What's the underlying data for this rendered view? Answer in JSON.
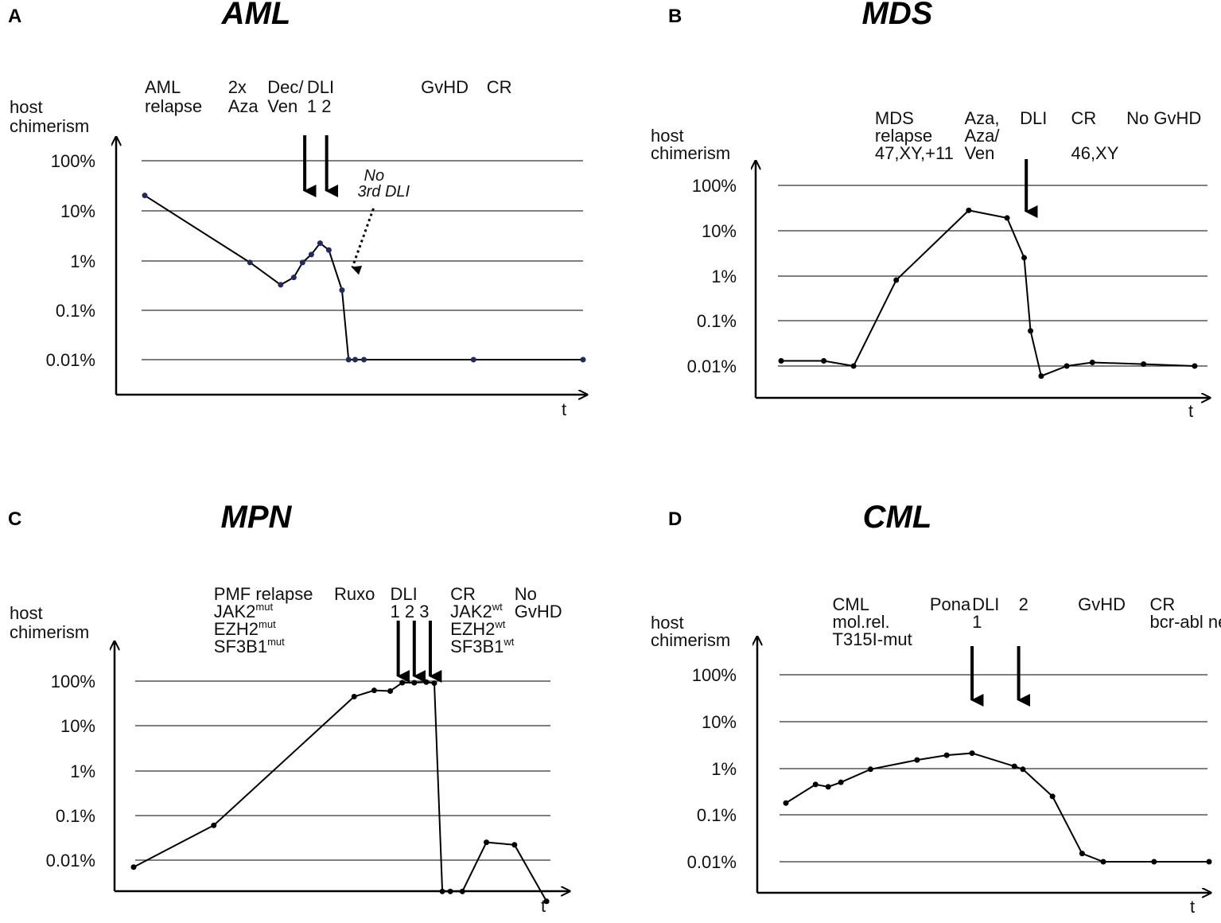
{
  "chart_data": [
    {
      "panel": "A",
      "title": "AML",
      "type": "line",
      "ylabel": [
        "host",
        "chimerism"
      ],
      "xlabel": "t",
      "yticks": [
        "100%",
        "10%",
        "1%",
        "0.1%",
        "0.01%"
      ],
      "yscale": "log",
      "ylim_exp": [
        -2,
        2
      ],
      "xlim": [
        0,
        100
      ],
      "x": [
        0,
        24,
        31,
        34,
        36,
        38,
        40,
        42,
        45,
        46.5,
        48,
        50,
        75,
        100
      ],
      "y": [
        20,
        0.9,
        0.32,
        0.45,
        0.9,
        1.3,
        2.2,
        1.6,
        0.25,
        0.01,
        0.01,
        0.01,
        0.01,
        0.01
      ],
      "point_color": "#1f2a6b",
      "annotations": [
        {
          "lines": [
            "AML",
            "relapse"
          ],
          "at": 0
        },
        {
          "lines": [
            "2x",
            "Aza"
          ],
          "at": 19
        },
        {
          "lines": [
            "Dec/",
            "Ven"
          ],
          "at": 28
        },
        {
          "lines": [
            "DLI",
            "1  2"
          ],
          "at": 37
        },
        {
          "lines": [
            "GvHD"
          ],
          "at": 63
        },
        {
          "lines": [
            "CR"
          ],
          "at": 78
        }
      ],
      "arrows": [
        36.5,
        41.5
      ],
      "dotted_arrow": {
        "from": 50,
        "to": 47
      },
      "note": [
        "No",
        "3rd DLI"
      ]
    },
    {
      "panel": "B",
      "title": "MDS",
      "type": "line",
      "ylabel": [
        "host",
        "chimerism"
      ],
      "xlabel": "t",
      "yticks": [
        "100%",
        "10%",
        "1%",
        "0.1%",
        "0.01%"
      ],
      "yscale": "log",
      "ylim_exp": [
        -2,
        2
      ],
      "xlim": [
        0,
        100
      ],
      "x": [
        0,
        10,
        17,
        27,
        44,
        53,
        57,
        58.5,
        61,
        67,
        73,
        85,
        97
      ],
      "y": [
        0.013,
        0.013,
        0.01,
        0.8,
        28,
        19,
        2.5,
        0.06,
        0.006,
        0.01,
        0.012,
        0.011,
        0.01
      ],
      "point_color": "#000000",
      "annotations": [
        {
          "lines": [
            "MDS",
            "relapse",
            "47,XY,+11"
          ],
          "at": 22
        },
        {
          "lines": [
            "Aza,",
            "Aza/",
            "Ven"
          ],
          "at": 43
        },
        {
          "lines": [
            "DLI"
          ],
          "at": 56
        },
        {
          "lines": [
            "CR",
            "",
            "46,XY"
          ],
          "at": 68
        },
        {
          "lines": [
            "No GvHD"
          ],
          "at": 81
        }
      ],
      "arrows": [
        57.5
      ]
    },
    {
      "panel": "C",
      "title": "MPN",
      "type": "line",
      "ylabel": [
        "host",
        "chimerism"
      ],
      "xlabel": "t",
      "yticks": [
        "100%",
        "10%",
        "1%",
        "0.1%",
        "0.01%"
      ],
      "yscale": "log",
      "ylim_exp": [
        -2,
        2
      ],
      "xlim": [
        0,
        100
      ],
      "x": [
        0,
        20,
        55,
        60,
        64,
        67,
        70,
        73,
        75,
        77,
        79,
        82,
        88,
        95,
        103
      ],
      "y": [
        0.007,
        0.06,
        45,
        62,
        60,
        92,
        92,
        95,
        90,
        0.002,
        0.002,
        0.002,
        0.025,
        0.022,
        0.0012
      ],
      "point_color": "#000000",
      "annotations": [
        {
          "lines": [
            "PMF relapse",
            "JAK2^mut",
            "EZH2^mut",
            "SF3B1^mut"
          ],
          "at": 20
        },
        {
          "lines": [
            "Ruxo"
          ],
          "at": 50
        },
        {
          "lines": [
            "DLI",
            "1 2 3"
          ],
          "at": 64
        },
        {
          "lines": [
            "CR",
            "JAK2^wt",
            "EZH2^wt",
            "SF3B1^wt"
          ],
          "at": 79
        },
        {
          "lines": [
            "No",
            "GvHD"
          ],
          "at": 95
        }
      ],
      "arrows": [
        66,
        70,
        74
      ]
    },
    {
      "panel": "D",
      "title": "CML",
      "type": "line",
      "ylabel": [
        "host",
        "chimerism"
      ],
      "xlabel": "t",
      "yticks": [
        "100%",
        "10%",
        "1%",
        "0.1%",
        "0.01%"
      ],
      "yscale": "log",
      "ylim_exp": [
        -2,
        2
      ],
      "xlim": [
        0,
        100
      ],
      "x": [
        0,
        7,
        10,
        13,
        20,
        31,
        38,
        44,
        54,
        56,
        63,
        70,
        75,
        87,
        100
      ],
      "y": [
        0.18,
        0.45,
        0.4,
        0.5,
        0.95,
        1.5,
        1.9,
        2.1,
        1.1,
        0.95,
        0.25,
        0.015,
        0.01,
        0.01,
        0.01
      ],
      "point_color": "#000000",
      "annotations": [
        {
          "lines": [
            "CML",
            "mol.rel.",
            "T315I-mut"
          ],
          "at": 11
        },
        {
          "lines": [
            "Pona"
          ],
          "at": 34
        },
        {
          "lines": [
            "DLI",
            "1"
          ],
          "at": 44
        },
        {
          "lines": [
            "2"
          ],
          "at": 55
        },
        {
          "lines": [
            "GvHD"
          ],
          "at": 69
        },
        {
          "lines": [
            "CR",
            "bcr-abl neg."
          ],
          "at": 86
        }
      ],
      "arrows": [
        44,
        55
      ]
    }
  ]
}
